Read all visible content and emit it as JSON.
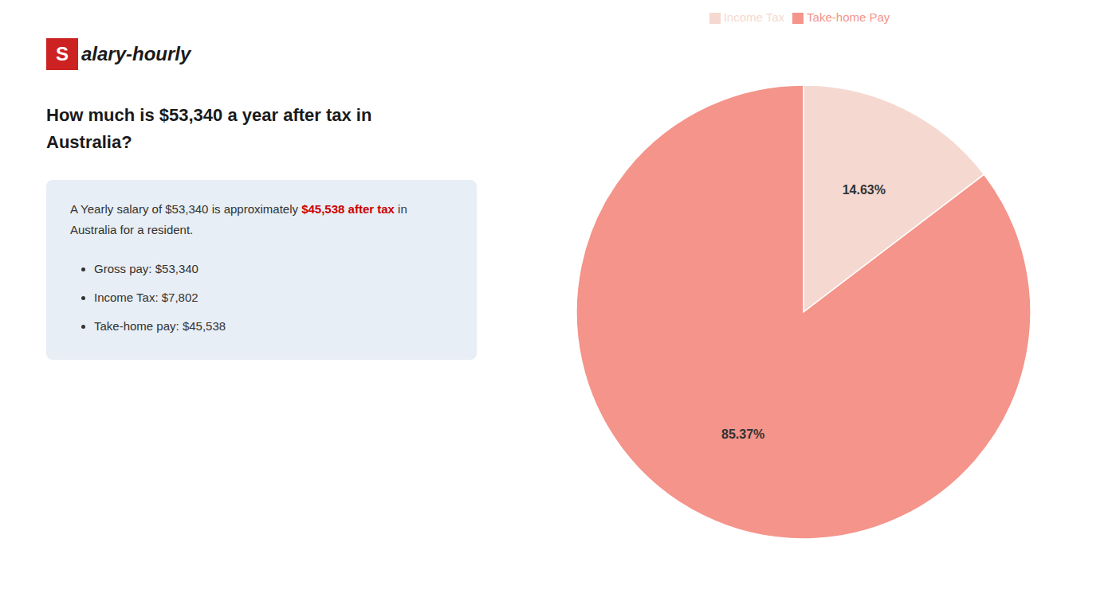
{
  "chart_data": {
    "type": "pie",
    "title": [
      "How much is $53,340 a year after tax in",
      "Australia?"
    ],
    "categories": [
      "Income Tax",
      "Take-home Pay"
    ],
    "values": [
      14.63,
      85.37
    ],
    "value_labels": [
      "14.63%",
      "85.37%"
    ],
    "colors": [
      "#f5d9d0",
      "#f4948a"
    ],
    "data_labels": true,
    "legend": "top",
    "annotations": [
      {
        "text": "S",
        "color": "#cc2222"
      },
      {
        "text": "alary-hourly"
      },
      {
        "text": "A Yearly salary of $53,340 is approximately "
      },
      {
        "text": "$45,538 after tax",
        "color": "#cc0000"
      },
      {
        "text": " in"
      },
      {
        "text": "Australia for a resident."
      },
      {
        "text": "Gross pay: $53,340"
      },
      {
        "text": "Income Tax: $7,802"
      },
      {
        "text": "Take-home pay: $45,538"
      }
    ]
  }
}
